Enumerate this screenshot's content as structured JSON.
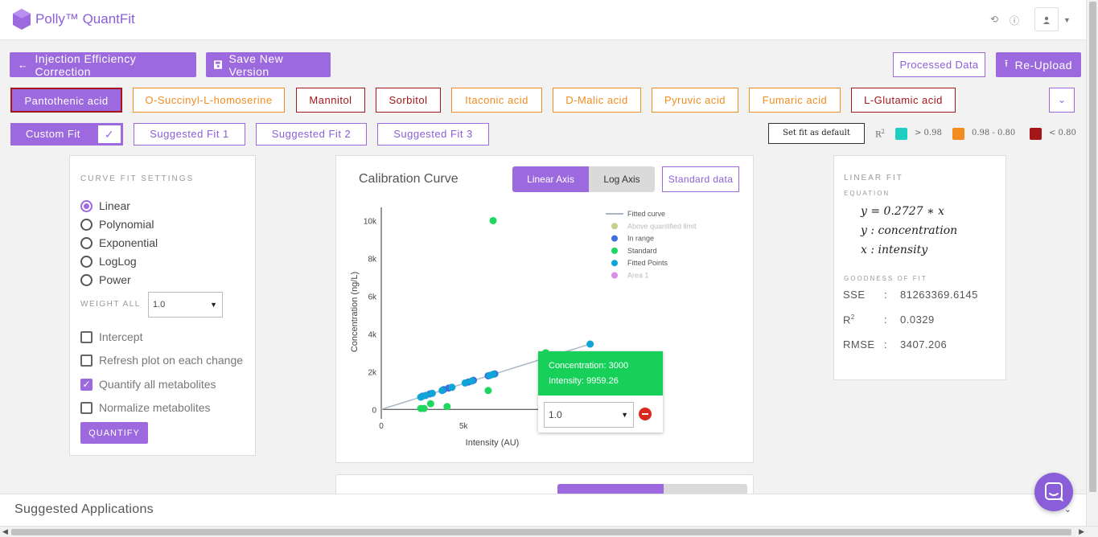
{
  "app": {
    "name": "Polly™ QuantFit"
  },
  "actions": {
    "back_label": "Injection Efficiency Correction",
    "save_label": "Save New Version",
    "processed_data_label": "Processed Data",
    "reupload_label": "Re-Upload"
  },
  "metabolites": [
    {
      "label": "Pantothenic acid",
      "state": "active"
    },
    {
      "label": "O-Succinyl-L-homoserine",
      "state": "orange"
    },
    {
      "label": "Mannitol",
      "state": "red"
    },
    {
      "label": "Sorbitol",
      "state": "red"
    },
    {
      "label": "Itaconic acid",
      "state": "orange"
    },
    {
      "label": "D-Malic acid",
      "state": "orange"
    },
    {
      "label": "Pyruvic acid",
      "state": "orange"
    },
    {
      "label": "Fumaric acid",
      "state": "orange"
    },
    {
      "label": "L-Glutamic acid",
      "state": "red"
    }
  ],
  "fits": {
    "custom": "Custom Fit",
    "suggested": [
      "Suggested Fit 1",
      "Suggested Fit 2",
      "Suggested Fit 3"
    ],
    "set_default": "Set fit as default"
  },
  "r2_legend": {
    "label": "R",
    "sup": "2",
    "items": [
      {
        "text": "> 0.98",
        "color": "#1ccfc0"
      },
      {
        "text": "0.98 - 0.80",
        "color": "#f28c1e"
      },
      {
        "text": "< 0.80",
        "color": "#a4161a"
      }
    ]
  },
  "settings": {
    "title": "CURVE FIT SETTINGS",
    "fit_types": [
      "Linear",
      "Polynomial",
      "Exponential",
      "LogLog",
      "Power"
    ],
    "selected_fit": "Linear",
    "weight_label": "WEIGHT ALL",
    "weight_value": "1.0",
    "options": [
      {
        "label": "Intercept",
        "checked": false
      },
      {
        "label": "Refresh plot on each change",
        "checked": false
      },
      {
        "label": "Quantify all metabolites",
        "checked": true
      },
      {
        "label": "Normalize metabolites",
        "checked": false
      }
    ],
    "quantify_label": "QUANTIFY"
  },
  "chart_panel": {
    "title": "Calibration Curve",
    "axis_toggle": [
      "Linear Axis",
      "Log Axis"
    ],
    "standard_data_label": "Standard data",
    "tooltip": {
      "line1": "Concentration: 3000",
      "line2": "Intensity: 9959.26",
      "weight": "1.0"
    }
  },
  "chart_data": {
    "type": "scatter",
    "title": "",
    "xlabel": "Intensity (AU)",
    "ylabel": "Concentration (ng/L)",
    "xlim": [
      0,
      13500
    ],
    "ylim": [
      -500,
      10700
    ],
    "x_ticks": [
      {
        "v": 0,
        "t": "0"
      },
      {
        "v": 5000,
        "t": "5k"
      },
      {
        "v": 10000,
        "t": "10k"
      }
    ],
    "y_ticks": [
      {
        "v": 0,
        "t": "0"
      },
      {
        "v": 2000,
        "t": "2k"
      },
      {
        "v": 4000,
        "t": "4k"
      },
      {
        "v": 6000,
        "t": "6k"
      },
      {
        "v": 8000,
        "t": "8k"
      },
      {
        "v": 10000,
        "t": "10k"
      }
    ],
    "legend": [
      {
        "name": "Fitted curve",
        "color": "#aab7c4",
        "kind": "line",
        "dim": false
      },
      {
        "name": "Above quantified limit",
        "color": "#c5d18a",
        "kind": "dot",
        "dim": true
      },
      {
        "name": "In range",
        "color": "#3d6fe0",
        "kind": "dot",
        "dim": false
      },
      {
        "name": "Standard",
        "color": "#1ed760",
        "kind": "dot",
        "dim": false
      },
      {
        "name": "Fitted Points",
        "color": "#10a5d6",
        "kind": "dot",
        "dim": false
      },
      {
        "name": "Area 1",
        "color": "#d98ee8",
        "kind": "dot",
        "dim": true
      }
    ],
    "fitted_curve": [
      [
        0,
        0
      ],
      [
        12800,
        3490
      ]
    ],
    "series": [
      {
        "name": "Standard",
        "color": "#1ed760",
        "points": [
          [
            6800,
            10000
          ],
          [
            2400,
            50
          ],
          [
            2600,
            50
          ],
          [
            3000,
            300
          ],
          [
            4000,
            150
          ],
          [
            6500,
            1000
          ],
          [
            10000,
            3000
          ]
        ]
      },
      {
        "name": "In range",
        "color": "#3d6fe0",
        "points": [
          [
            2500,
            700
          ],
          [
            2950,
            820
          ],
          [
            3800,
            1050
          ],
          [
            4100,
            1130
          ],
          [
            5300,
            1450
          ],
          [
            5600,
            1540
          ],
          [
            6500,
            1780
          ],
          [
            6900,
            1880
          ]
        ]
      },
      {
        "name": "Fitted Points",
        "color": "#10a5d6",
        "points": [
          [
            2400,
            650
          ],
          [
            2700,
            740
          ],
          [
            3100,
            850
          ],
          [
            3700,
            1000
          ],
          [
            4300,
            1170
          ],
          [
            5100,
            1400
          ],
          [
            5500,
            1500
          ],
          [
            6600,
            1800
          ],
          [
            6800,
            1860
          ],
          [
            10000,
            2730
          ],
          [
            12700,
            3460
          ]
        ]
      }
    ]
  },
  "fit_summary": {
    "title": "LINEAR FIT",
    "equation_label": "EQUATION",
    "equation": [
      "y = 0.2727 ∗ x",
      "y : concentration",
      "x : intensity"
    ],
    "goodness_label": "GOODNESS OF FIT",
    "stats": [
      {
        "name": "SSE",
        "sup": "",
        "value": "81263369.6145"
      },
      {
        "name": "R",
        "sup": "2",
        "value": "0.0329"
      },
      {
        "name": "RMSE",
        "sup": "",
        "value": "3407.206"
      }
    ]
  },
  "footer": {
    "title": "Suggested Applications"
  },
  "colors": {
    "accent": "#9c6ade",
    "danger": "#d9291c",
    "tooltip_green": "#16d05a"
  }
}
